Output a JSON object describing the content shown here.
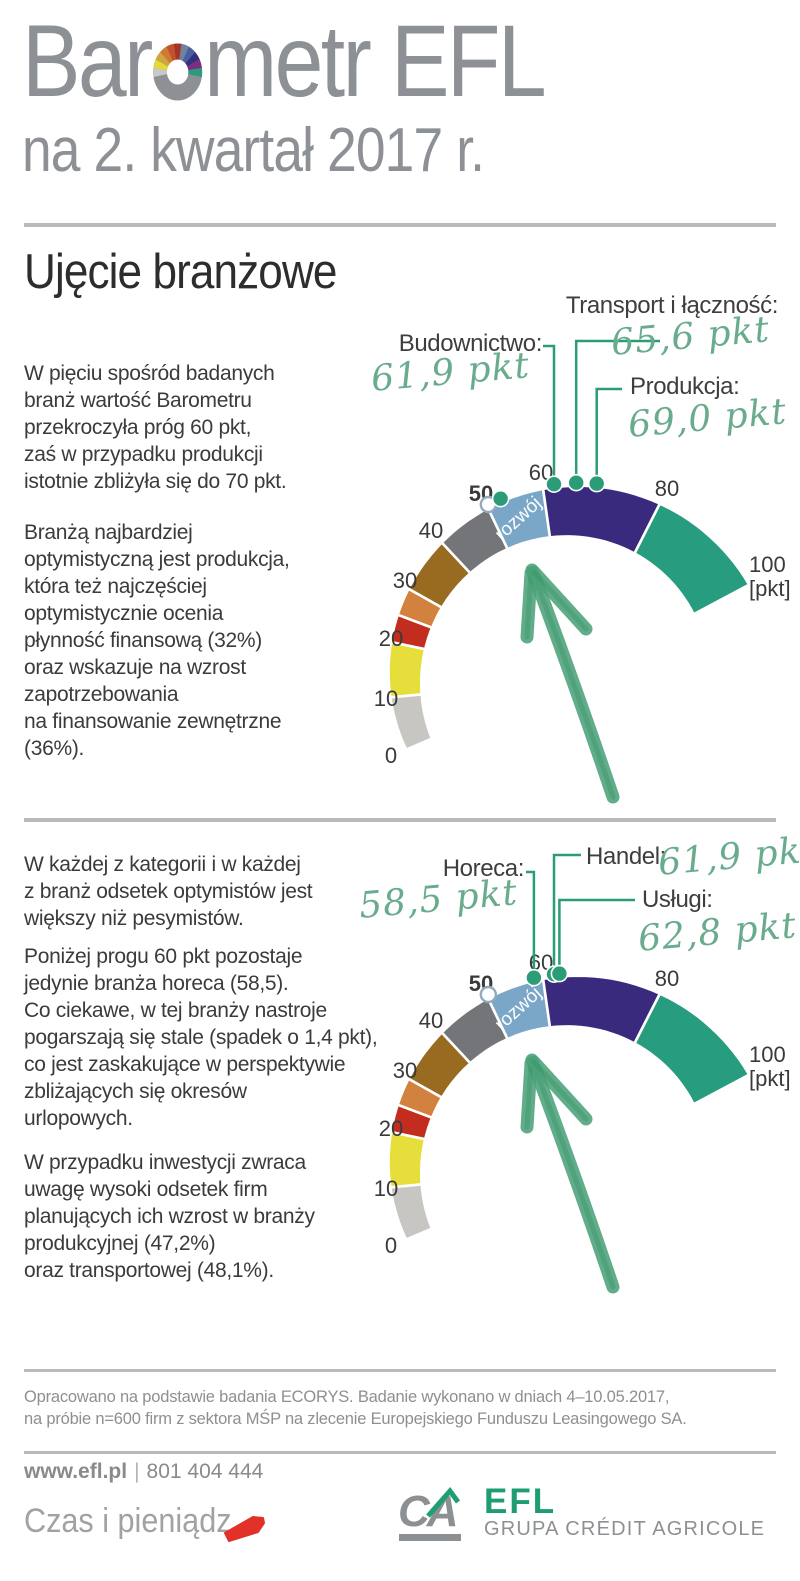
{
  "header": {
    "title_pre": "Bar",
    "title_post": "metr EFL",
    "subtitle": "na 2. kwartał 2017 r.",
    "title_color": "#8d9195",
    "donut_colors": [
      "#c9c9c9",
      "#e3d93b",
      "#d2a63c",
      "#cf7a31",
      "#c3512b",
      "#a33527",
      "#7281a0",
      "#4a5f9e",
      "#32317e",
      "#7c2f80",
      "#2a9c7e"
    ]
  },
  "section": {
    "title": "Ujęcie branżowe"
  },
  "paragraphs": {
    "s1p1": "W pięciu spośród badanych\nbranż wartość Barometru\nprzekroczyła próg 60 pkt,\nzaś w przypadku produkcji\nistotnie zbliżyła się do 70 pkt.",
    "s1p2": "Branżą najbardziej\noptymistyczną jest produkcja,\nktóra też najczęściej\noptymistycznie ocenia\npłynność finansową (32%)\noraz wskazuje na wzrost\nzapotrzebowania\nna finansowanie zewnętrzne\n(36%).",
    "s2p1": "W każdej z kategorii i w każdej\nz branż odsetek optymistów jest\nwiększy niż pesymistów.",
    "s2p2": "Poniżej progu 60 pkt pozostaje\njedynie branża horeca (58,5).\nCo ciekawe, w tej branży nastroje\npogarszają  się stale (spadek o 1,4 pkt),\nco jest zaskakujące w perspektywie\nzbliżających się okresów\nurlopowych.",
    "s2p3": "W przypadku inwestycji zwraca\nuwagę wysoki odsetek firm\nplanujących ich wzrost w branży\nprodukcyjnej (47,2%)\noraz transportowej (48,1%)."
  },
  "chart_data": {
    "type": "gauge",
    "unit": "pkt",
    "axis_range": [
      0,
      100
    ],
    "grid": false,
    "zone_label": "rozwój",
    "threshold": 50,
    "marker_color": "#2a9c78",
    "ticks": [
      {
        "v": 0,
        "label": "0"
      },
      {
        "v": 10,
        "label": "10"
      },
      {
        "v": 20,
        "label": "20"
      },
      {
        "v": 30,
        "label": "30"
      },
      {
        "v": 40,
        "label": "40"
      },
      {
        "v": 50,
        "label": "50",
        "bold": true
      },
      {
        "v": 60,
        "label": "60"
      },
      {
        "v": 80,
        "label": "80"
      },
      {
        "v": 100,
        "label": "100",
        "label2": "[pkt]"
      }
    ],
    "segments": [
      {
        "from": 0,
        "to": 10,
        "color": "#c8c6c3"
      },
      {
        "from": 10,
        "to": 20,
        "color": "#e5de3b"
      },
      {
        "from": 20,
        "to": 25,
        "color": "#c32d20"
      },
      {
        "from": 25,
        "to": 30,
        "color": "#d2813e"
      },
      {
        "from": 30,
        "to": 40,
        "color": "#996b20"
      },
      {
        "from": 40,
        "to": 50,
        "color": "#747578"
      },
      {
        "from": 50,
        "to": 60,
        "color": "#7aa6c8"
      },
      {
        "from": 60,
        "to": 80,
        "color": "#3a2a7d"
      },
      {
        "from": 80,
        "to": 100,
        "color": "#279c7e"
      }
    ],
    "gauges": [
      {
        "position": "top",
        "open_marker": 50.3,
        "unlabeled_dot": 52.6,
        "sectors": [
          {
            "label": "Budownictwo:",
            "value_text": "61,9 pkt",
            "points": 61.9
          },
          {
            "label": "Transport i łączność:",
            "value_text": "65,6 pkt",
            "points": 65.6
          },
          {
            "label": "Produkcja:",
            "value_text": "69,0 pkt",
            "points": 69.0
          }
        ]
      },
      {
        "position": "bottom",
        "open_marker": 50.3,
        "sectors": [
          {
            "label": "Horeca:",
            "value_text": "58,5 pkt",
            "points": 58.5
          },
          {
            "label": "Handel:",
            "value_text": "61,9 pkt",
            "points": 61.9
          },
          {
            "label": "Usługi:",
            "value_text": "62,8 pkt",
            "points": 62.8
          }
        ]
      }
    ]
  },
  "footer": {
    "note": "Opracowano na podstawie badania ECORYS. Badanie wykonano w dniach 4–10.05.2017,\nna próbie n=600 firm z sektora MŚP na zlecenie Europejskiego Funduszu Leasingowego SA.",
    "site": "www.efl.pl",
    "separator": "|",
    "phone": "801 404 444"
  },
  "logos": {
    "tagline": "Czas i pieniądz",
    "ca_monogram": "CA",
    "efl": "EFL",
    "group": "GRUPA CRÉDIT AGRICOLE",
    "red": "#e13128",
    "efl_green": "#1e9d72",
    "logo_gray": "#8d9093"
  },
  "colors": {
    "accent_teal": "#2a9c78",
    "handwriting_green": "#69ab8d",
    "arrow_green": "#4ba279",
    "divider_gray": "#b9b9b9",
    "body_text": "#3b3b3b"
  }
}
